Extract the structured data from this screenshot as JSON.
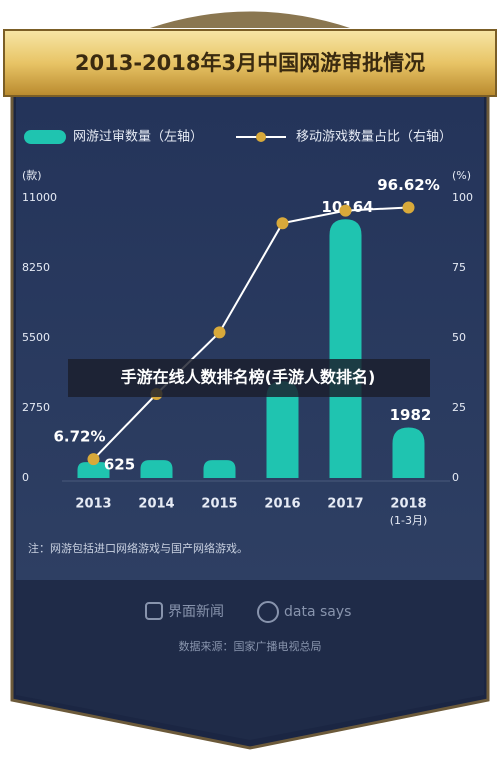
{
  "chart_data": {
    "type": "bar_line",
    "title": "2013-2018年3月中国网游审批情况",
    "categories": [
      "2013",
      "2014",
      "2015",
      "2016",
      "2017",
      "2018"
    ],
    "category_sublabels": [
      null,
      null,
      null,
      null,
      null,
      "(1-3月)"
    ],
    "series": [
      {
        "name": "网游过审数量（左轴）",
        "type": "bar",
        "color": "#1fc4b0",
        "values": [
          625,
          700,
          700,
          3800,
          10164,
          1982
        ],
        "value_labels": [
          "625",
          null,
          null,
          null,
          "10164",
          "1982"
        ]
      },
      {
        "name": "移动游戏数量占比（右轴）",
        "type": "line",
        "axis": "y2",
        "color": "#ffffff",
        "marker_color": "#d8a93a",
        "values": [
          6.72,
          30,
          52,
          91,
          95.5,
          96.62
        ],
        "value_labels": [
          "6.72%",
          null,
          null,
          null,
          null,
          "96.62%"
        ]
      }
    ],
    "y_unit": "(款)",
    "y2_unit": "(%)",
    "ylim": [
      0,
      11000
    ],
    "yticks": [
      0,
      2750,
      5500,
      8250,
      11000
    ],
    "y2lim": [
      0,
      100
    ],
    "y2ticks": [
      0,
      25,
      50,
      75,
      100
    ],
    "grid": false,
    "legend": "top",
    "note": "注：网游包括进口网络游戏与国产网络游戏。",
    "watermark": [
      "界面新闻",
      "data say​s"
    ],
    "source": "数据来源：国家广播电视总局",
    "overlay_caption": "手游在线人数排名榜(手游人数排名)"
  }
}
